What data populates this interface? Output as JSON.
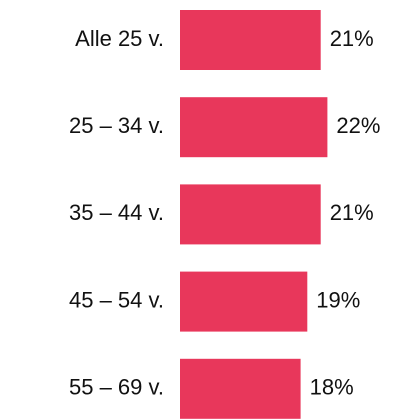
{
  "chart_data": {
    "type": "bar",
    "orientation": "horizontal",
    "categories": [
      "Alle 25 v.",
      "25 – 34 v.",
      "35 – 44 v.",
      "45 – 54 v.",
      "55 – 69 v."
    ],
    "values": [
      21,
      22,
      21,
      19,
      18
    ],
    "value_labels": [
      "21%",
      "22%",
      "21%",
      "19%",
      "18%"
    ],
    "color": "#e8375b"
  }
}
